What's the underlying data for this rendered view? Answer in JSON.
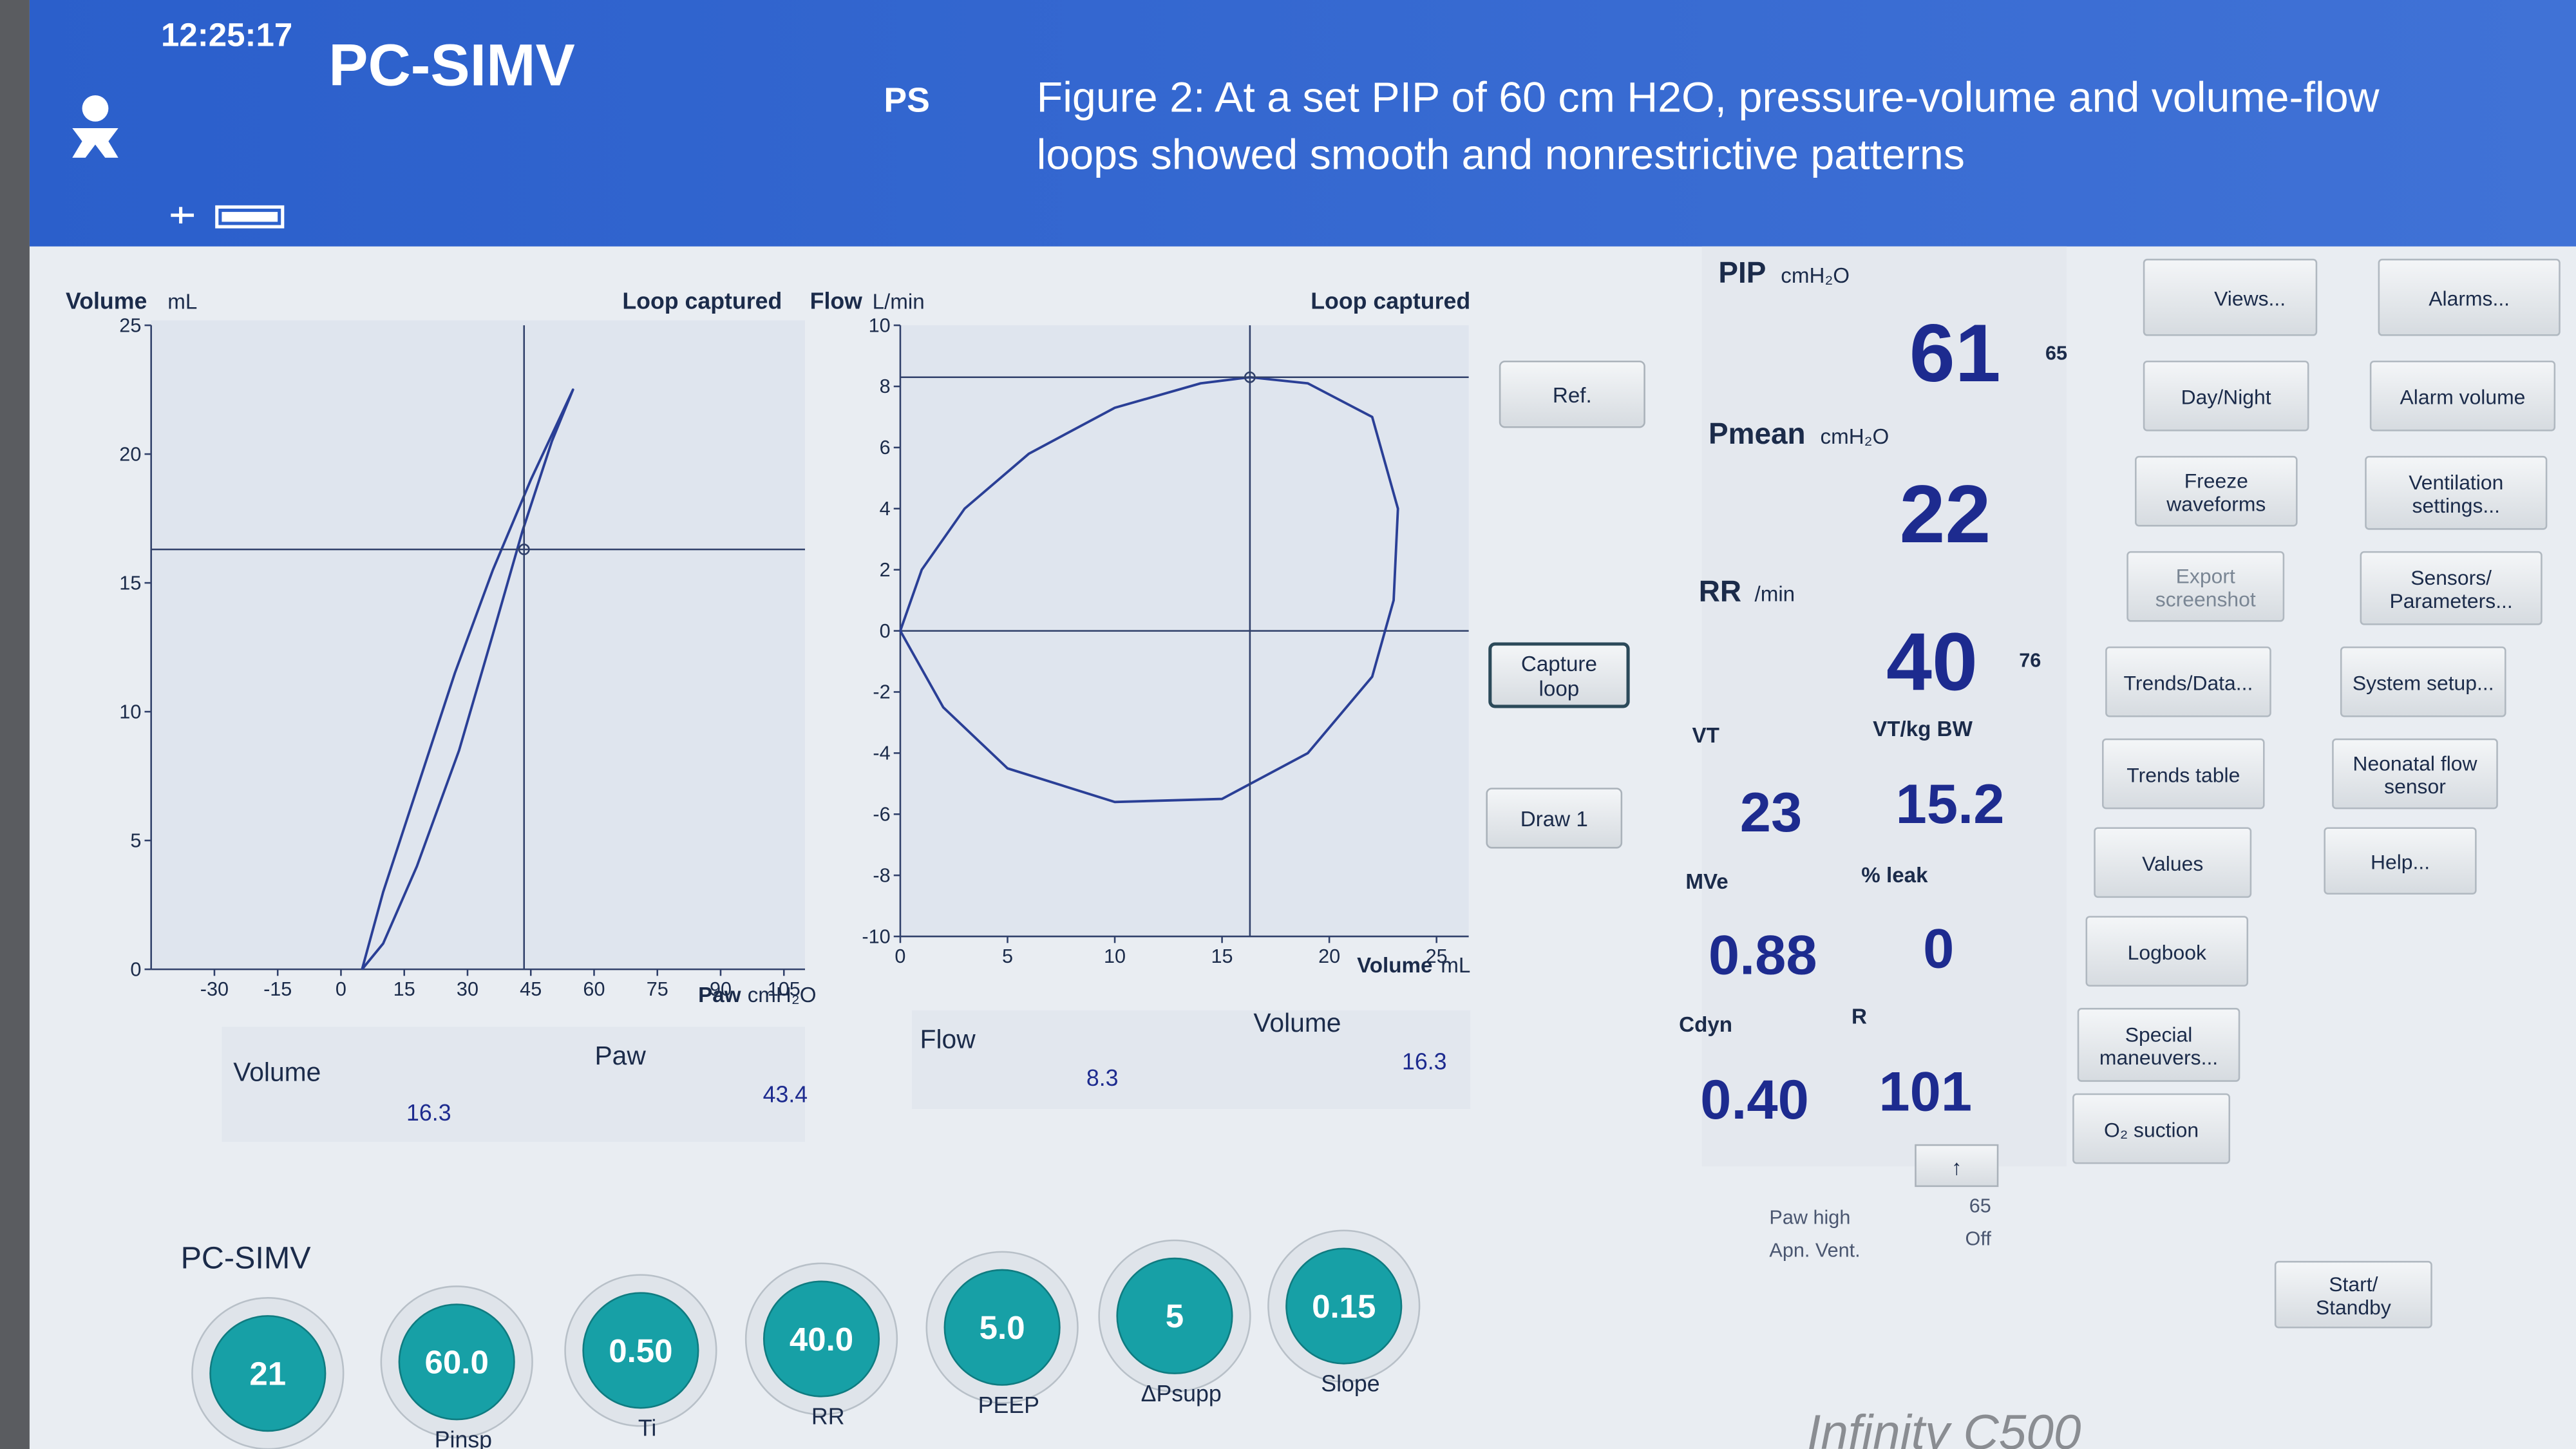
{
  "header": {
    "time": "12:25:17",
    "mode": "PC-SIMV",
    "submode": "PS",
    "caption": [
      "Figure 2: At a set PIP of 60 cm H2O, pressure-volume and volume-flow",
      "loops showed smooth and nonrestrictive patterns"
    ]
  },
  "pv_loop": {
    "y_label": "Volume",
    "y_unit": "mL",
    "status": "Loop captured",
    "x_label": "Paw",
    "x_unit": "cmH₂O",
    "xlim": [
      -45,
      110
    ],
    "xticks": [
      -30,
      -15,
      0,
      15,
      30,
      45,
      60,
      75,
      90,
      105
    ],
    "ylim": [
      0,
      25
    ],
    "yticks": [
      0,
      5,
      10,
      15,
      20,
      25
    ],
    "loop": {
      "x": [
        5,
        10,
        18,
        27,
        36,
        45,
        55,
        50,
        43,
        36,
        28,
        18,
        10,
        5
      ],
      "y": [
        0,
        3,
        7,
        11.5,
        15.5,
        19,
        22.5,
        20.5,
        17,
        13,
        8.5,
        4,
        1,
        0
      ]
    },
    "readouts": [
      {
        "label": "Volume",
        "value": 16.3
      },
      {
        "label": "Paw",
        "value": 43.4
      }
    ]
  },
  "fv_loop": {
    "y_label": "Flow",
    "y_unit": "L/min",
    "status": "Loop captured",
    "x_label": "Volume",
    "x_unit": "mL",
    "xlim": [
      0,
      26.5
    ],
    "xticks": [
      0,
      5,
      10,
      15,
      20,
      25
    ],
    "ylim": [
      -10,
      10
    ],
    "yticks": [
      -10,
      -8,
      -6,
      -4,
      -2,
      0,
      2,
      4,
      6,
      8,
      10
    ],
    "loop": {
      "x": [
        0,
        1,
        3,
        6,
        10,
        14,
        16.3,
        19,
        22,
        23.2,
        23,
        22,
        19,
        15,
        10,
        5,
        2,
        0
      ],
      "y": [
        0,
        2,
        4,
        5.8,
        7.3,
        8.1,
        8.3,
        8.1,
        7,
        4,
        1,
        -1.5,
        -4,
        -5.5,
        -5.6,
        -4.5,
        -2.5,
        0
      ]
    },
    "readouts": [
      {
        "label": "Flow",
        "value": 8.3
      },
      {
        "label": "Volume",
        "value": 16.3
      }
    ]
  },
  "loop_buttons": [
    [
      "Ref."
    ],
    [
      "Capture",
      "loop"
    ],
    [
      "Draw 1"
    ]
  ],
  "measurements": {
    "pip": {
      "label": "PIP",
      "unit": "cmH₂O",
      "value": "61",
      "limit": "65"
    },
    "pmean": {
      "label": "Pmean",
      "unit": "cmH₂O",
      "value": "22"
    },
    "rr": {
      "label": "RR",
      "unit": "/min",
      "value": "40",
      "limit": "76"
    },
    "vt": {
      "label": "VT",
      "value": "23"
    },
    "vtkg": {
      "label": "VT/kg BW",
      "value": "15.2"
    },
    "mve": {
      "label": "MVe",
      "value": "0.88"
    },
    "leak": {
      "label": "% leak",
      "value": "0"
    },
    "cdyn": {
      "label": "Cdyn",
      "value": "0.40"
    },
    "r": {
      "label": "R",
      "value": "101"
    },
    "arrow": "↑",
    "alarms": [
      {
        "label": "Paw high",
        "value": "65"
      },
      {
        "label": "Apn. Vent.",
        "value": "Off"
      }
    ]
  },
  "menu_buttons": [
    [
      "Views..."
    ],
    [
      "Alarms..."
    ],
    [
      "Day/Night"
    ],
    [
      "Alarm volume"
    ],
    [
      "Freeze",
      "waveforms"
    ],
    [
      "Ventilation",
      "settings..."
    ],
    [
      "Export",
      "screenshot"
    ],
    [
      "Sensors/",
      "Parameters..."
    ],
    [
      "Trends/Data..."
    ],
    [
      "System setup..."
    ],
    [
      "Trends table"
    ],
    [
      "Neonatal flow",
      "sensor"
    ],
    [
      "Values"
    ],
    [
      "Help..."
    ],
    [
      "Logbook"
    ],
    [
      "Special",
      "maneuvers..."
    ],
    [
      "O₂ suction"
    ],
    [
      "Start/",
      "Standby"
    ]
  ],
  "settings": {
    "mode": "PC-SIMV",
    "knobs": [
      {
        "value": "21"
      },
      {
        "value": "60.0",
        "label": "Pinsp"
      },
      {
        "value": "0.50",
        "label": "Ti"
      },
      {
        "value": "40.0",
        "label": "RR"
      },
      {
        "value": "5.0",
        "label": "PEEP"
      },
      {
        "value": "5",
        "label": "ΔPsupp"
      },
      {
        "value": "0.15",
        "label": "Slope"
      }
    ]
  },
  "brand": "Infinity C500"
}
